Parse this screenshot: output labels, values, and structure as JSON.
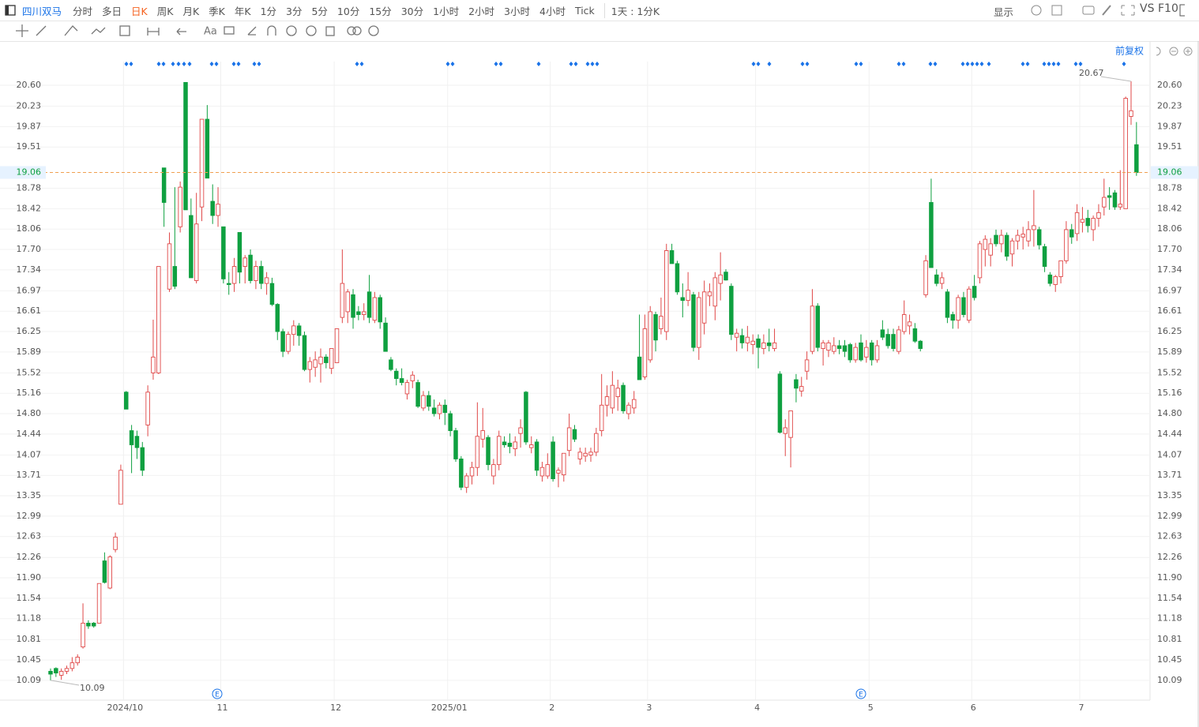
{
  "toolbar": {
    "symbol": "四川双马",
    "periods": [
      "分时",
      "多日",
      "日K",
      "周K",
      "月K",
      "季K",
      "年K",
      "1分",
      "3分",
      "5分",
      "10分",
      "15分",
      "30分",
      "1小时",
      "2小时",
      "3小时",
      "4小时",
      "Tick"
    ],
    "range": "1天 : 1分K",
    "text_tool": "Aa",
    "display": "显示",
    "compare": "VS",
    "f10": "F10"
  },
  "chart_data": {
    "type": "candlestick",
    "adjust": "前复权",
    "event_label": "E",
    "ylim": [
      9.74,
      21.325
    ],
    "yticks": [
      {
        "value": 20.6,
        "label": "20.60"
      },
      20.23,
      19.87,
      19.51,
      18.78,
      18.42,
      18.06,
      {
        "value": 17.7,
        "label": "17.70"
      },
      17.34,
      16.97,
      16.61,
      16.25,
      15.89,
      15.52,
      15.16,
      {
        "value": 14.8,
        "label": "14.80"
      },
      14.44,
      14.07,
      13.71,
      13.35,
      12.99,
      12.63,
      12.26,
      {
        "value": 11.9,
        "label": "11.90"
      },
      11.54,
      11.18,
      10.81,
      10.45,
      10.09
    ],
    "xticks": [
      {
        "value": 14,
        "label": "2024/10"
      },
      {
        "value": 32,
        "label": "11"
      },
      {
        "value": 53,
        "label": "12"
      },
      {
        "value": 74,
        "label": "2025/01"
      },
      {
        "value": 93,
        "label": "2"
      },
      {
        "value": 111,
        "label": "3"
      },
      {
        "value": 131,
        "label": "4"
      },
      {
        "value": 152,
        "label": "5"
      },
      {
        "value": 171,
        "label": "6"
      },
      {
        "value": 191,
        "label": "7"
      }
    ],
    "up_color": "#e04848",
    "down_color": "#0fa040",
    "grid": true,
    "price_line": 19.06,
    "high_label": 20.67,
    "low_label": 10.09,
    "candles": [
      [
        10.25,
        10.3,
        10.09,
        10.2
      ],
      [
        10.3,
        10.32,
        10.15,
        10.22
      ],
      [
        10.18,
        10.3,
        10.1,
        10.25
      ],
      [
        10.25,
        10.35,
        10.2,
        10.3
      ],
      [
        10.3,
        10.5,
        10.25,
        10.4
      ],
      [
        10.4,
        10.55,
        10.35,
        10.5
      ],
      [
        10.68,
        11.45,
        10.65,
        11.1
      ],
      [
        11.1,
        11.15,
        11.0,
        11.05
      ],
      [
        11.1,
        11.12,
        11.02,
        11.05
      ],
      [
        11.1,
        11.8,
        11.1,
        11.8
      ],
      [
        12.2,
        12.35,
        11.8,
        11.82
      ],
      [
        11.72,
        12.3,
        11.7,
        12.27
      ],
      [
        12.4,
        12.7,
        12.35,
        12.62
      ],
      [
        13.2,
        13.9,
        13.2,
        13.8
      ],
      [
        15.18,
        15.2,
        14.9,
        14.88
      ],
      [
        14.5,
        14.6,
        13.75,
        14.25
      ],
      [
        14.4,
        14.5,
        14.0,
        14.2
      ],
      [
        14.2,
        14.3,
        13.7,
        13.8
      ],
      [
        14.6,
        15.3,
        14.4,
        15.18
      ],
      [
        15.52,
        16.46,
        15.4,
        15.8
      ],
      [
        15.52,
        17.4,
        15.5,
        17.4
      ],
      [
        19.14,
        19.14,
        18.1,
        18.53
      ],
      [
        17.0,
        18.0,
        16.95,
        17.8
      ],
      [
        17.4,
        18.8,
        17.0,
        17.05
      ],
      [
        18.1,
        18.9,
        18.0,
        18.8
      ],
      [
        20.65,
        20.65,
        18.4,
        18.4
      ],
      [
        18.3,
        18.6,
        17.2,
        17.2
      ],
      [
        17.15,
        18.7,
        17.1,
        18.15
      ],
      [
        18.45,
        20.0,
        18.2,
        20.0
      ],
      [
        20.0,
        20.25,
        18.96,
        18.96
      ],
      [
        18.55,
        18.85,
        18.15,
        18.3
      ],
      [
        18.3,
        18.8,
        18.1,
        18.5
      ],
      [
        18.1,
        18.1,
        17.1,
        17.18
      ],
      [
        17.1,
        17.3,
        16.9,
        17.08
      ],
      [
        17.1,
        17.55,
        16.95,
        17.4
      ],
      [
        18.0,
        18.0,
        17.1,
        17.3
      ],
      [
        17.4,
        17.6,
        17.1,
        17.55
      ],
      [
        17.6,
        17.7,
        17.1,
        17.15
      ],
      [
        17.15,
        17.5,
        17.0,
        17.4
      ],
      [
        17.4,
        17.5,
        17.0,
        17.1
      ],
      [
        17.1,
        17.3,
        16.9,
        17.2
      ],
      [
        17.1,
        17.2,
        16.7,
        16.73
      ],
      [
        16.73,
        16.75,
        16.1,
        16.25
      ],
      [
        16.25,
        16.3,
        15.8,
        15.9
      ],
      [
        15.9,
        16.25,
        15.85,
        16.2
      ],
      [
        16.2,
        16.45,
        16.0,
        16.35
      ],
      [
        16.35,
        16.4,
        16.0,
        16.18
      ],
      [
        16.18,
        16.25,
        15.55,
        15.58
      ],
      [
        15.58,
        15.8,
        15.35,
        15.72
      ],
      [
        15.62,
        15.9,
        15.45,
        15.75
      ],
      [
        15.68,
        15.95,
        15.35,
        15.8
      ],
      [
        15.8,
        15.85,
        15.6,
        15.7
      ],
      [
        15.6,
        15.95,
        15.5,
        15.95
      ],
      [
        15.7,
        16.3,
        15.7,
        16.3
      ],
      [
        16.5,
        17.7,
        16.4,
        17.1
      ],
      [
        16.6,
        17.0,
        16.4,
        16.95
      ],
      [
        16.9,
        17.0,
        16.3,
        16.5
      ],
      [
        16.6,
        16.7,
        16.45,
        16.55
      ],
      [
        16.55,
        16.75,
        16.45,
        16.6
      ],
      [
        16.95,
        17.25,
        16.4,
        16.5
      ],
      [
        16.45,
        16.95,
        16.4,
        16.85
      ],
      [
        16.85,
        16.9,
        16.3,
        16.42
      ],
      [
        16.4,
        16.5,
        15.9,
        15.9
      ],
      [
        15.75,
        15.8,
        15.55,
        15.58
      ],
      [
        15.55,
        15.6,
        15.3,
        15.42
      ],
      [
        15.42,
        15.6,
        15.3,
        15.35
      ],
      [
        15.15,
        15.4,
        15.05,
        15.35
      ],
      [
        15.38,
        15.55,
        15.25,
        15.48
      ],
      [
        15.35,
        15.4,
        14.9,
        14.93
      ],
      [
        14.9,
        15.2,
        14.85,
        15.12
      ],
      [
        15.12,
        15.2,
        14.85,
        14.93
      ],
      [
        14.9,
        15.05,
        14.75,
        14.8
      ],
      [
        14.8,
        15.0,
        14.7,
        14.95
      ],
      [
        14.95,
        15.05,
        14.6,
        14.82
      ],
      [
        14.8,
        14.85,
        14.4,
        14.5
      ],
      [
        14.5,
        14.55,
        13.95,
        14.0
      ],
      [
        14.0,
        14.05,
        13.45,
        13.5
      ],
      [
        13.5,
        13.75,
        13.4,
        13.7
      ],
      [
        13.7,
        13.95,
        13.55,
        13.85
      ],
      [
        13.85,
        15.0,
        13.7,
        14.4
      ],
      [
        14.35,
        14.9,
        14.2,
        14.5
      ],
      [
        14.38,
        14.42,
        13.8,
        13.9
      ],
      [
        13.7,
        14.0,
        13.55,
        13.9
      ],
      [
        13.9,
        14.5,
        13.8,
        14.4
      ],
      [
        14.3,
        14.4,
        14.2,
        14.25
      ],
      [
        14.28,
        14.45,
        14.1,
        14.22
      ],
      [
        14.18,
        14.4,
        14.05,
        14.3
      ],
      [
        14.45,
        14.7,
        14.2,
        14.55
      ],
      [
        15.18,
        15.2,
        14.25,
        14.3
      ],
      [
        14.2,
        14.4,
        14.1,
        14.25
      ],
      [
        14.3,
        14.35,
        13.7,
        13.8
      ],
      [
        13.7,
        13.95,
        13.6,
        13.85
      ],
      [
        13.7,
        14.1,
        13.65,
        13.9
      ],
      [
        14.3,
        14.4,
        13.6,
        13.65
      ],
      [
        13.75,
        13.85,
        13.5,
        13.8
      ],
      [
        13.72,
        14.1,
        13.6,
        14.1
      ],
      [
        14.15,
        14.8,
        14.05,
        14.55
      ],
      [
        14.52,
        14.6,
        14.3,
        14.35
      ],
      [
        14.0,
        14.2,
        13.9,
        14.12
      ],
      [
        14.05,
        14.2,
        13.95,
        14.1
      ],
      [
        14.07,
        14.2,
        13.95,
        14.12
      ],
      [
        14.12,
        14.55,
        14.05,
        14.45
      ],
      [
        14.5,
        15.5,
        14.4,
        14.95
      ],
      [
        14.95,
        15.3,
        14.75,
        15.1
      ],
      [
        14.9,
        15.55,
        14.8,
        15.3
      ],
      [
        15.1,
        15.4,
        14.85,
        15.25
      ],
      [
        15.3,
        15.35,
        14.8,
        14.85
      ],
      [
        14.8,
        15.0,
        14.7,
        14.95
      ],
      [
        14.9,
        15.2,
        14.8,
        15.05
      ],
      [
        15.8,
        16.55,
        15.4,
        15.4
      ],
      [
        15.45,
        16.55,
        15.4,
        16.3
      ],
      [
        15.75,
        16.7,
        15.7,
        16.6
      ],
      [
        16.55,
        16.6,
        15.9,
        16.1
      ],
      [
        16.3,
        16.85,
        16.2,
        16.52
      ],
      [
        16.25,
        17.8,
        16.1,
        17.68
      ],
      [
        17.68,
        17.8,
        17.45,
        17.45
      ],
      [
        17.45,
        17.5,
        16.9,
        16.95
      ],
      [
        16.85,
        17.1,
        16.5,
        16.8
      ],
      [
        16.8,
        17.3,
        16.7,
        16.98
      ],
      [
        16.9,
        16.95,
        15.9,
        15.97
      ],
      [
        15.97,
        16.95,
        15.75,
        16.85
      ],
      [
        16.4,
        17.15,
        16.2,
        16.95
      ],
      [
        16.88,
        17.1,
        16.7,
        16.95
      ],
      [
        16.7,
        17.3,
        16.45,
        17.2
      ],
      [
        17.1,
        17.65,
        16.8,
        17.25
      ],
      [
        17.3,
        17.35,
        17.15,
        17.16
      ],
      [
        17.05,
        17.1,
        16.1,
        16.2
      ],
      [
        16.15,
        16.3,
        15.9,
        16.22
      ],
      [
        16.18,
        16.3,
        15.95,
        16.05
      ],
      [
        16.05,
        16.35,
        15.9,
        16.15
      ],
      [
        16.02,
        16.2,
        15.85,
        16.08
      ],
      [
        16.12,
        16.2,
        15.6,
        15.97
      ],
      [
        15.95,
        16.2,
        15.85,
        16.05
      ],
      [
        16.05,
        16.3,
        15.9,
        16.0
      ],
      [
        15.95,
        16.3,
        15.9,
        16.05
      ],
      [
        15.5,
        15.55,
        14.45,
        14.47
      ],
      [
        14.45,
        14.7,
        14.05,
        14.55
      ],
      [
        14.38,
        14.85,
        13.85,
        14.85
      ],
      [
        15.4,
        15.5,
        15.0,
        15.25
      ],
      [
        15.2,
        15.45,
        15.1,
        15.28
      ],
      [
        15.55,
        15.9,
        15.4,
        15.75
      ],
      [
        15.9,
        17.0,
        15.85,
        16.7
      ],
      [
        16.7,
        16.75,
        15.9,
        15.97
      ],
      [
        15.95,
        16.1,
        15.65,
        16.05
      ],
      [
        15.92,
        16.1,
        15.8,
        16.05
      ],
      [
        15.9,
        16.15,
        15.85,
        16.0
      ],
      [
        16.0,
        16.1,
        15.85,
        15.95
      ],
      [
        16.0,
        16.1,
        15.8,
        15.9
      ],
      [
        16.02,
        16.05,
        15.7,
        15.75
      ],
      [
        15.75,
        16.05,
        15.7,
        15.97
      ],
      [
        16.05,
        16.2,
        15.72,
        15.75
      ],
      [
        15.8,
        16.1,
        15.7,
        15.97
      ],
      [
        16.05,
        16.1,
        15.65,
        15.75
      ],
      [
        15.75,
        16.1,
        15.7,
        16.0
      ],
      [
        16.28,
        16.45,
        16.1,
        16.15
      ],
      [
        16.2,
        16.3,
        15.95,
        16.0
      ],
      [
        16.2,
        16.3,
        15.9,
        15.95
      ],
      [
        15.9,
        16.35,
        15.85,
        16.28
      ],
      [
        16.25,
        16.8,
        16.2,
        16.55
      ],
      [
        16.35,
        16.55,
        16.2,
        16.42
      ],
      [
        16.3,
        16.4,
        16.05,
        16.08
      ],
      [
        16.08,
        16.1,
        15.9,
        15.95
      ],
      [
        16.9,
        17.6,
        16.85,
        17.5
      ],
      [
        18.53,
        18.95,
        17.4,
        17.38
      ],
      [
        17.25,
        17.35,
        17.05,
        17.1
      ],
      [
        17.1,
        17.3,
        17.0,
        17.2
      ],
      [
        16.95,
        17.0,
        16.4,
        16.5
      ],
      [
        16.55,
        16.6,
        16.3,
        16.45
      ],
      [
        16.45,
        16.9,
        16.3,
        16.85
      ],
      [
        16.85,
        16.95,
        16.5,
        16.55
      ],
      [
        16.45,
        17.05,
        16.4,
        17.0
      ],
      [
        17.05,
        17.25,
        16.8,
        16.85
      ],
      [
        17.2,
        17.85,
        17.1,
        17.8
      ],
      [
        17.7,
        17.95,
        17.4,
        17.88
      ],
      [
        17.6,
        17.9,
        17.4,
        17.8
      ],
      [
        17.95,
        18.05,
        17.75,
        17.8
      ],
      [
        17.8,
        18.05,
        17.65,
        17.95
      ],
      [
        17.95,
        18.0,
        17.5,
        17.58
      ],
      [
        17.62,
        17.9,
        17.4,
        17.85
      ],
      [
        17.85,
        18.05,
        17.7,
        17.95
      ],
      [
        17.92,
        18.1,
        17.7,
        17.97
      ],
      [
        17.85,
        18.2,
        17.75,
        18.05
      ],
      [
        18.05,
        18.75,
        17.75,
        18.12
      ],
      [
        18.05,
        18.1,
        17.7,
        17.78
      ],
      [
        17.75,
        17.8,
        17.3,
        17.4
      ],
      [
        17.25,
        17.3,
        17.05,
        17.1
      ],
      [
        17.08,
        17.25,
        16.95,
        17.22
      ],
      [
        17.22,
        17.5,
        17.1,
        17.5
      ],
      [
        17.5,
        18.2,
        17.45,
        18.05
      ],
      [
        18.05,
        18.15,
        17.8,
        17.92
      ],
      [
        17.98,
        18.5,
        17.85,
        18.35
      ],
      [
        18.18,
        18.45,
        18.0,
        18.23
      ],
      [
        18.25,
        18.4,
        18.0,
        18.12
      ],
      [
        18.05,
        18.3,
        17.85,
        18.25
      ],
      [
        18.25,
        18.5,
        18.1,
        18.35
      ],
      [
        18.45,
        18.95,
        18.3,
        18.62
      ],
      [
        18.65,
        18.8,
        18.4,
        18.62
      ],
      [
        18.7,
        18.75,
        18.4,
        18.45
      ],
      [
        18.45,
        19.1,
        18.4,
        18.5
      ],
      [
        18.42,
        20.4,
        18.42,
        20.37
      ],
      [
        20.05,
        20.67,
        19.9,
        20.15
      ],
      [
        19.55,
        19.95,
        19.0,
        19.06
      ]
    ]
  }
}
